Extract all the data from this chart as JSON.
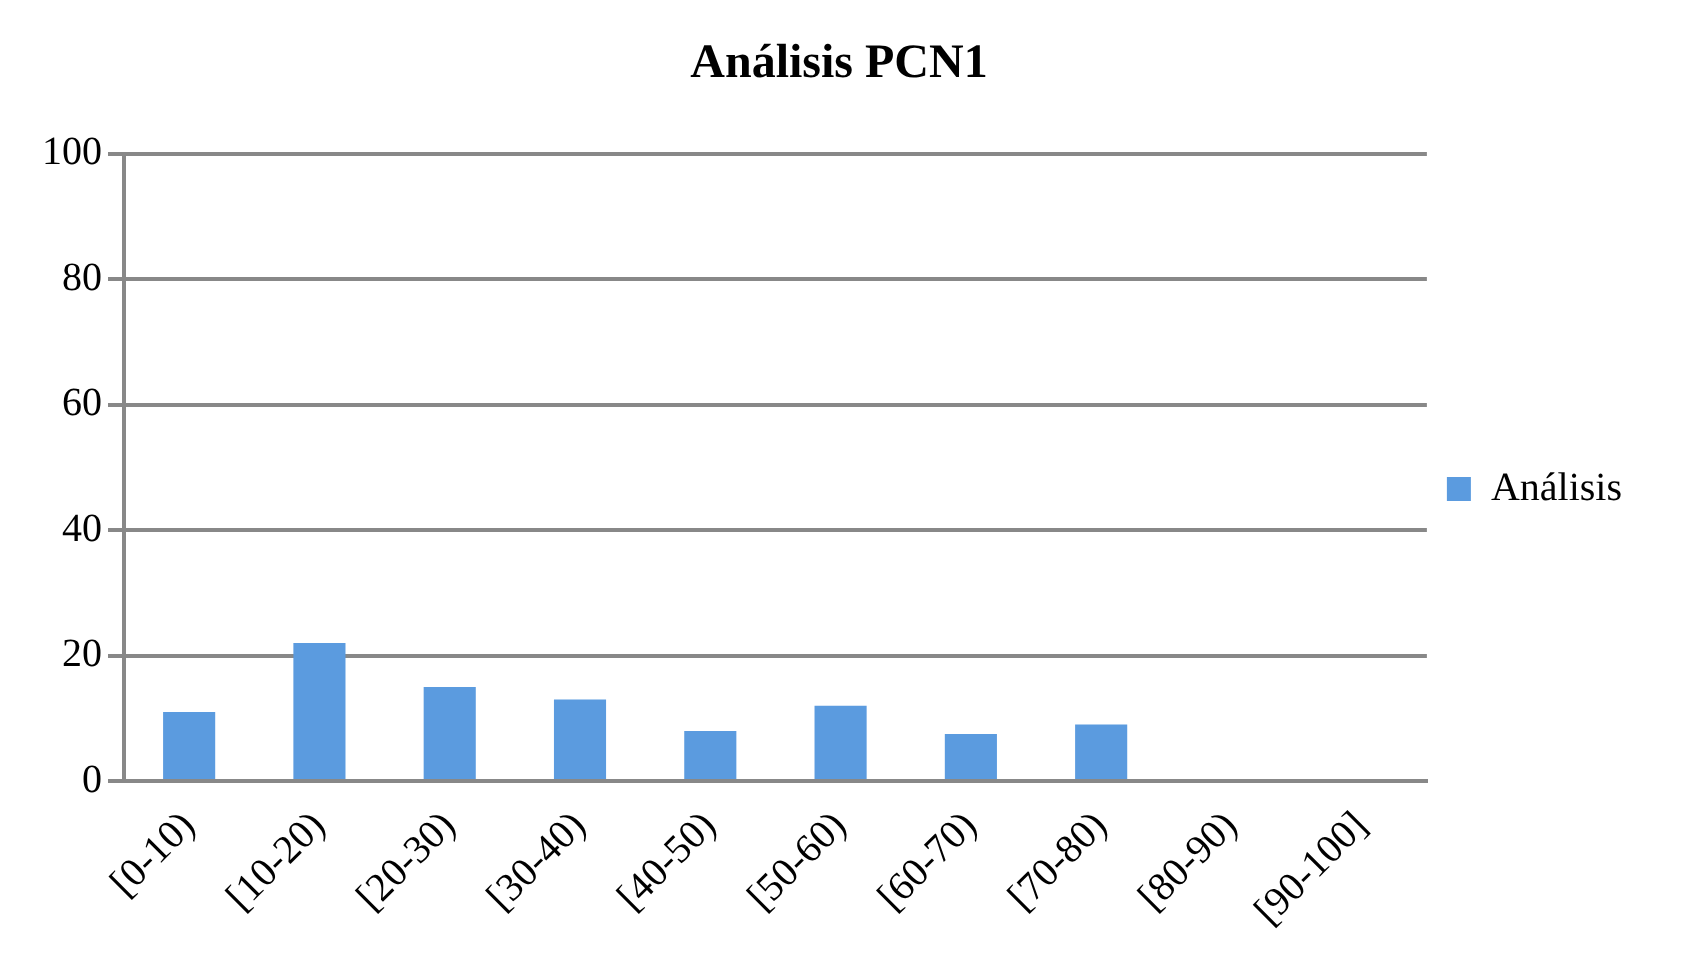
{
  "chart_data": {
    "type": "bar",
    "title": "Análisis PCN1",
    "categories": [
      "[0-10)",
      "[10-20)",
      "[20-30)",
      "[30-40)",
      "[40-50)",
      "[50-60)",
      "[60-70)",
      "[70-80)",
      "[80-90)",
      "[90-100]"
    ],
    "series": [
      {
        "name": "Análisis",
        "color": "#5b9bdf",
        "values": [
          11,
          22,
          15,
          13,
          8,
          12,
          7.5,
          9,
          0,
          0
        ]
      }
    ],
    "ylim": [
      0,
      100
    ],
    "yticks": [
      0,
      20,
      40,
      60,
      80,
      100
    ],
    "grid": "y",
    "legend": "right"
  }
}
